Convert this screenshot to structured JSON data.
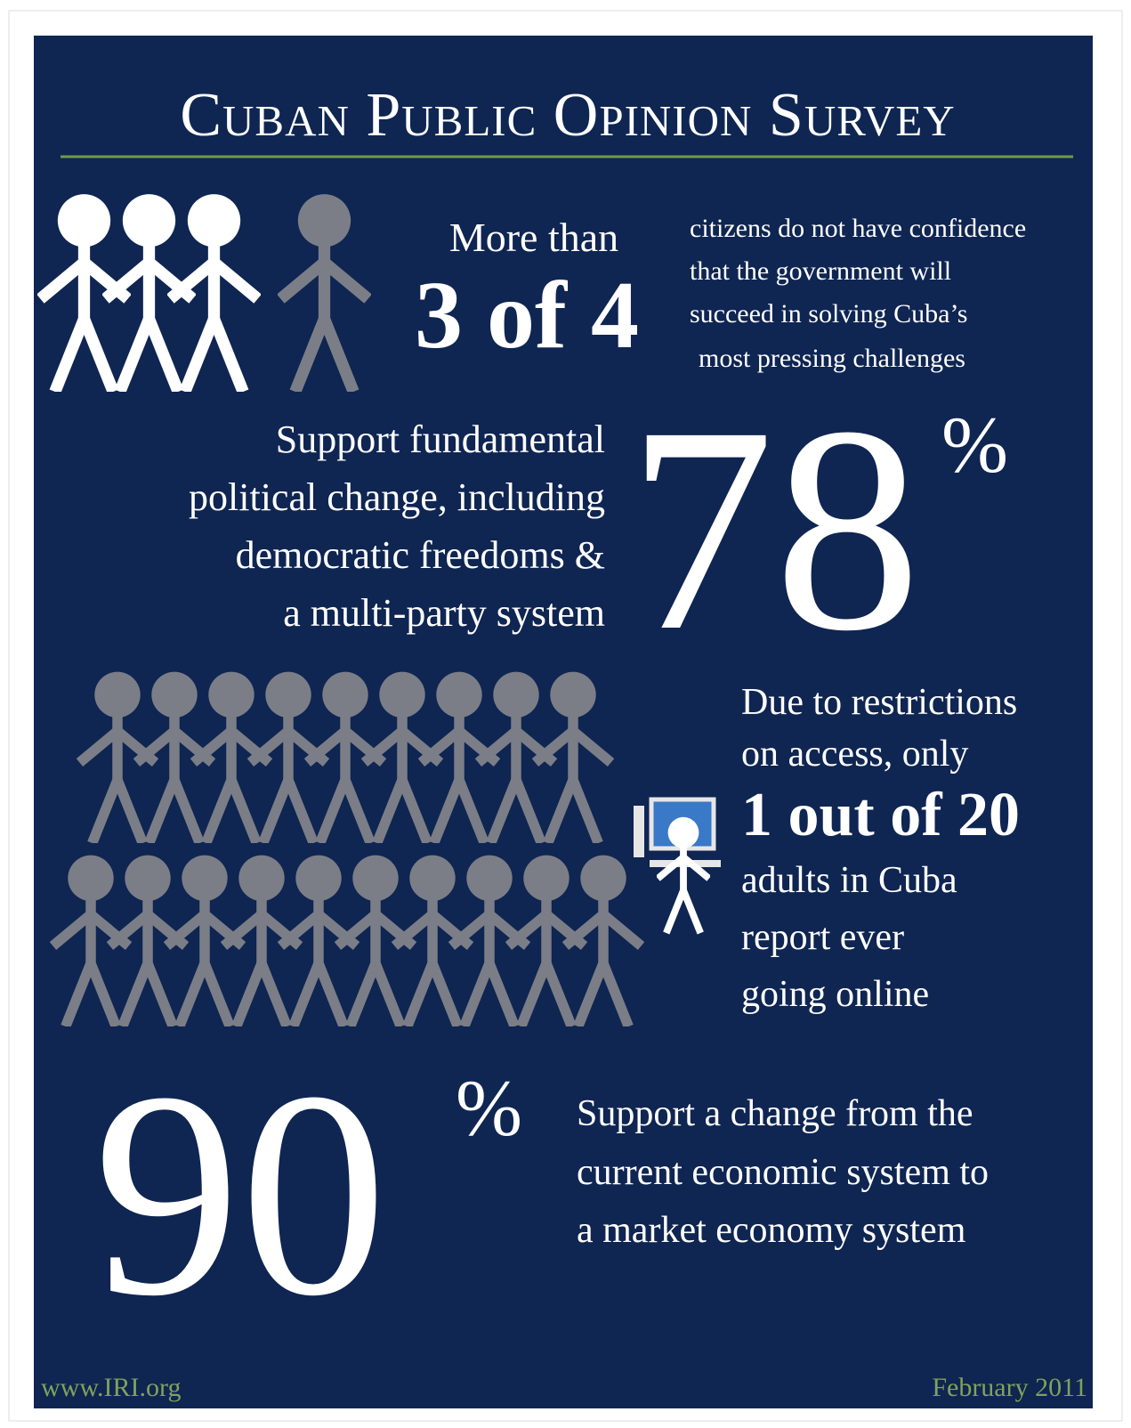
{
  "header": {
    "title": "Cuban Public Opinion Survey"
  },
  "stats": [
    {
      "lead": "More than",
      "figure": "3 of 4",
      "description": [
        "citizens do not have confidence",
        "that the government will",
        "succeed in solving Cuba’s",
        "most pressing challenges"
      ]
    },
    {
      "description": [
        "Support fundamental",
        "political change, including",
        "democratic freedoms &",
        "a multi-party system"
      ],
      "figure": "78",
      "unit": "%"
    },
    {
      "lead": [
        "Due to restrictions",
        "on access, only"
      ],
      "figure": "1 out of 20",
      "description": [
        "adults in Cuba",
        "report ever",
        "going online"
      ]
    },
    {
      "figure": "90",
      "unit": "%",
      "description": [
        "Support a change from the",
        "current economic system to",
        "a market economy system"
      ]
    }
  ],
  "footer": {
    "url": "www.IRI.org",
    "date": "February 2011"
  }
}
